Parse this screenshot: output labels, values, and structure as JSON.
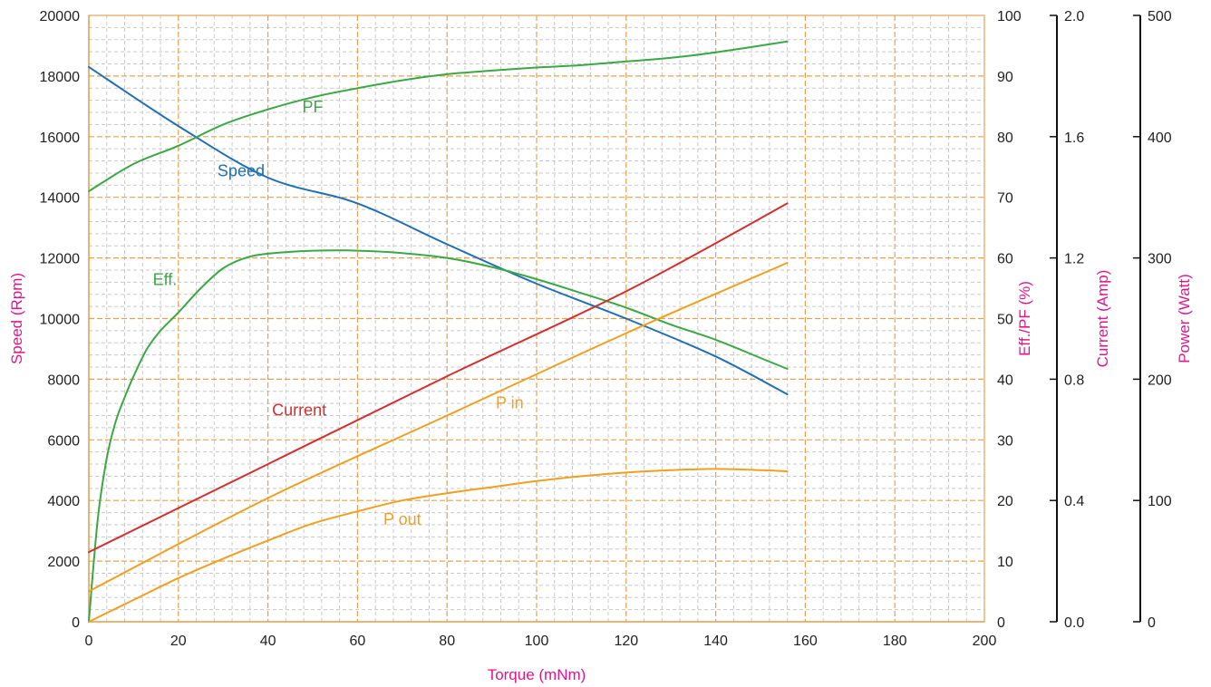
{
  "chart_data": {
    "type": "line",
    "xlabel": "Torque (mNm)",
    "xlim": [
      0,
      200
    ],
    "x_ticks": [
      "0",
      "20",
      "40",
      "60",
      "80",
      "100",
      "120",
      "140",
      "160",
      "180",
      "200"
    ],
    "y_axes": [
      {
        "id": "speed",
        "label": "Speed (Rpm)",
        "range": [
          0,
          20000
        ],
        "ticks": [
          "0",
          "2000",
          "4000",
          "6000",
          "8000",
          "10000",
          "12000",
          "14000",
          "16000",
          "18000",
          "20000"
        ]
      },
      {
        "id": "eff",
        "label": "Eff./PF (%)",
        "range": [
          0,
          100
        ],
        "ticks": [
          "0",
          "10",
          "20",
          "30",
          "40",
          "50",
          "60",
          "70",
          "80",
          "90",
          "100"
        ]
      },
      {
        "id": "current",
        "label": "Current (Amp)",
        "range": [
          0,
          2
        ],
        "ticks": [
          "0.0",
          "0.4",
          "0.8",
          "1.2",
          "1.6",
          "2.0"
        ]
      },
      {
        "id": "power",
        "label": "Power (Watt)",
        "range": [
          0,
          500
        ],
        "ticks": [
          "0",
          "100",
          "200",
          "300",
          "400",
          "500"
        ]
      }
    ],
    "grid": true,
    "series": [
      {
        "name": "Speed",
        "axis": "speed",
        "color": "#1f6fb5",
        "label_at": [
          34,
          14700
        ],
        "points": [
          [
            0,
            18300
          ],
          [
            20,
            16350
          ],
          [
            40,
            14650
          ],
          [
            60,
            13800
          ],
          [
            80,
            12450
          ],
          [
            100,
            11150
          ],
          [
            120,
            10000
          ],
          [
            140,
            8750
          ],
          [
            156,
            7500
          ]
        ]
      },
      {
        "name": "PF",
        "axis": "eff",
        "color": "#3aa845",
        "label_at": [
          50,
          84
        ],
        "points": [
          [
            0,
            71
          ],
          [
            10,
            75.5
          ],
          [
            20,
            78.5
          ],
          [
            30,
            82
          ],
          [
            40,
            84.5
          ],
          [
            50,
            86.5
          ],
          [
            60,
            88
          ],
          [
            70,
            89.3
          ],
          [
            80,
            90.3
          ],
          [
            90,
            90.9
          ],
          [
            100,
            91.4
          ],
          [
            110,
            91.8
          ],
          [
            120,
            92.4
          ],
          [
            130,
            93
          ],
          [
            140,
            93.9
          ],
          [
            156,
            95.7
          ]
        ]
      },
      {
        "name": "Eff.",
        "axis": "eff",
        "color": "#3aa845",
        "label_at": [
          17,
          55.5
        ],
        "points": [
          [
            0,
            0
          ],
          [
            2,
            17
          ],
          [
            4,
            27
          ],
          [
            6,
            33
          ],
          [
            8,
            37
          ],
          [
            10,
            40.5
          ],
          [
            13,
            45
          ],
          [
            16,
            48
          ],
          [
            20,
            51
          ],
          [
            25,
            55
          ],
          [
            30,
            58.3
          ],
          [
            35,
            60
          ],
          [
            40,
            60.7
          ],
          [
            50,
            61.2
          ],
          [
            60,
            61.2
          ],
          [
            70,
            60.8
          ],
          [
            80,
            60
          ],
          [
            90,
            58.5
          ],
          [
            100,
            56.5
          ],
          [
            110,
            54.2
          ],
          [
            120,
            51.8
          ],
          [
            130,
            49
          ],
          [
            140,
            46.5
          ],
          [
            150,
            43.5
          ],
          [
            156,
            41.7
          ]
        ]
      },
      {
        "name": "Current",
        "axis": "current",
        "color": "#d32f2f",
        "label_at": [
          47,
          0.68
        ],
        "points": [
          [
            0,
            0.23
          ],
          [
            40,
            0.52
          ],
          [
            80,
            0.81
          ],
          [
            120,
            1.09
          ],
          [
            156,
            1.38
          ]
        ]
      },
      {
        "name": "P in",
        "axis": "power",
        "color": "#f0a020",
        "label_at": [
          94,
          176
        ],
        "points": [
          [
            0,
            25
          ],
          [
            40,
            102
          ],
          [
            80,
            170
          ],
          [
            120,
            238
          ],
          [
            156,
            296
          ]
        ]
      },
      {
        "name": "P out",
        "axis": "power",
        "color": "#f0a020",
        "label_at": [
          70,
          80
        ],
        "points": [
          [
            0,
            0
          ],
          [
            10,
            18
          ],
          [
            20,
            36
          ],
          [
            30,
            52
          ],
          [
            40,
            67
          ],
          [
            50,
            81
          ],
          [
            60,
            91
          ],
          [
            70,
            100
          ],
          [
            80,
            106
          ],
          [
            90,
            111
          ],
          [
            100,
            116
          ],
          [
            110,
            120
          ],
          [
            120,
            123
          ],
          [
            130,
            125
          ],
          [
            140,
            126
          ],
          [
            150,
            125
          ],
          [
            156,
            124
          ]
        ]
      }
    ]
  }
}
